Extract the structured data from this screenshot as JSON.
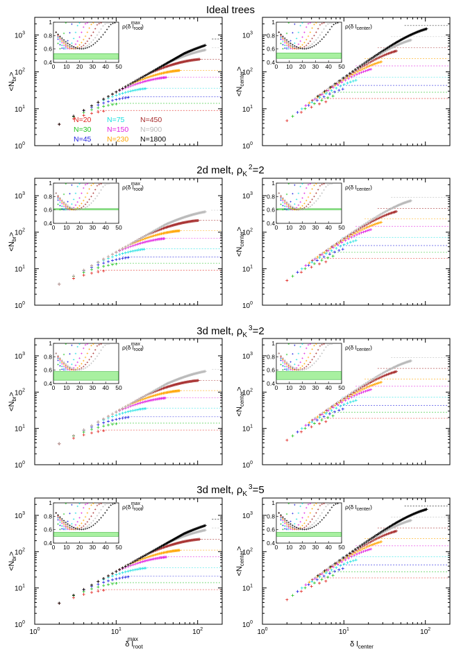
{
  "chart_data": {
    "type": "scatter",
    "figure": "Branch weight vs. path length for ideal trees and melts",
    "n_values": [
      20,
      30,
      45,
      75,
      150,
      230,
      450,
      900,
      1800
    ],
    "series_colors": [
      "#e0201b",
      "#22c422",
      "#2020e0",
      "#19e0e0",
      "#e020e0",
      "#ffa500",
      "#a52a2a",
      "#b8b8b8",
      "#000000"
    ],
    "legend": [
      {
        "label": "N=20",
        "color": "#e0201b"
      },
      {
        "label": "N=30",
        "color": "#22c422"
      },
      {
        "label": "N=45",
        "color": "#2020e0"
      },
      {
        "label": "N=75",
        "color": "#19e0e0"
      },
      {
        "label": "N=150",
        "color": "#e020e0"
      },
      {
        "label": "N=230",
        "color": "#ffa500"
      },
      {
        "label": "N=450",
        "color": "#a52a2a"
      },
      {
        "label": "N=900",
        "color": "#b8b8b8"
      },
      {
        "label": "N=1800",
        "color": "#000000"
      }
    ],
    "x_ticks": [
      "10",
      "10",
      "10"
    ],
    "x_tick_exps": [
      "0",
      "1",
      "2"
    ],
    "y_ticks": [
      "10",
      "10",
      "10",
      "10"
    ],
    "y_tick_exps": [
      "0",
      "1",
      "2",
      "3"
    ],
    "xlim": [
      1,
      200
    ],
    "ylim": [
      1,
      3000
    ],
    "inset": {
      "xlim": [
        0,
        50
      ],
      "ylim": [
        0.4,
        1.0
      ],
      "x_ticks": [
        "0",
        "10",
        "20",
        "30",
        "40",
        "50"
      ],
      "y_ticks": [
        "0.4",
        "0.6",
        "0.8",
        "1"
      ]
    },
    "columns": [
      {
        "ylabel_main": "<N",
        "ylabel_sub": "br",
        "ylabel_end": ">",
        "xlabel_main": "δ l",
        "xlabel_sub": "root",
        "xlabel_sup": "max",
        "inset_label_main": "ρ(δ l",
        "inset_label_sub": "root",
        "inset_label_sup": "max",
        "inset_label_end": ")",
        "inset_band_side": "root"
      },
      {
        "ylabel_main": "<N",
        "ylabel_sub": "center",
        "ylabel_end": ">",
        "xlabel_main": "δ l",
        "xlabel_sub": "center",
        "xlabel_sup": "",
        "inset_label_main": "ρ(δ l",
        "inset_label_sub": "center",
        "inset_label_sup": "",
        "inset_label_end": ")",
        "inset_band_side": "center"
      }
    ],
    "rows": [
      {
        "title_main": "Ideal trees",
        "title_sub": "",
        "title_sup": "",
        "title_tail": "",
        "present_n": [
          20,
          30,
          45,
          75,
          150,
          230,
          450,
          900,
          1800
        ],
        "plateaus_root": [
          9,
          14,
          21,
          36,
          72,
          110,
          220,
          450,
          780
        ],
        "plateaus_center": [
          19,
          28,
          43,
          72,
          145,
          230,
          450,
          900,
          1800
        ],
        "band_root": [
          0.45,
          0.53
        ],
        "band_center": [
          0.46,
          0.54
        ]
      },
      {
        "title_main": "2d melt, ρ",
        "title_sub": "K",
        "title_sup": "2",
        "title_tail": "=2",
        "present_n": [
          20,
          30,
          45,
          75,
          150,
          230,
          450,
          900
        ],
        "plateaus_root": [
          9,
          14,
          21,
          35,
          68,
          110,
          210,
          400
        ],
        "plateaus_center": [
          19,
          28,
          43,
          72,
          145,
          230,
          450,
          900
        ],
        "band_root": [
          0.6,
          0.62
        ],
        "band_center": [
          0.6,
          0.62
        ]
      },
      {
        "title_main": "3d melt, ρ",
        "title_sub": "K",
        "title_sup": "3",
        "title_tail": "=2",
        "present_n": [
          20,
          30,
          45,
          75,
          150,
          230,
          450,
          900
        ],
        "plateaus_root": [
          9,
          14,
          21,
          36,
          70,
          110,
          210,
          420
        ],
        "plateaus_center": [
          19,
          28,
          43,
          72,
          145,
          230,
          450,
          900
        ],
        "band_root": [
          0.45,
          0.58
        ],
        "band_center": [
          0.46,
          0.58
        ]
      },
      {
        "title_main": "3d melt, ρ",
        "title_sub": "K",
        "title_sup": "3",
        "title_tail": "=5",
        "present_n": [
          20,
          30,
          45,
          75,
          150,
          230,
          450,
          900,
          1800
        ],
        "plateaus_root": [
          9,
          14,
          21,
          36,
          72,
          110,
          220,
          450,
          780
        ],
        "plateaus_center": [
          19,
          28,
          43,
          72,
          145,
          230,
          450,
          900,
          1800
        ],
        "band_root": [
          0.5,
          0.56
        ],
        "band_center": [
          0.5,
          0.56
        ]
      }
    ]
  }
}
